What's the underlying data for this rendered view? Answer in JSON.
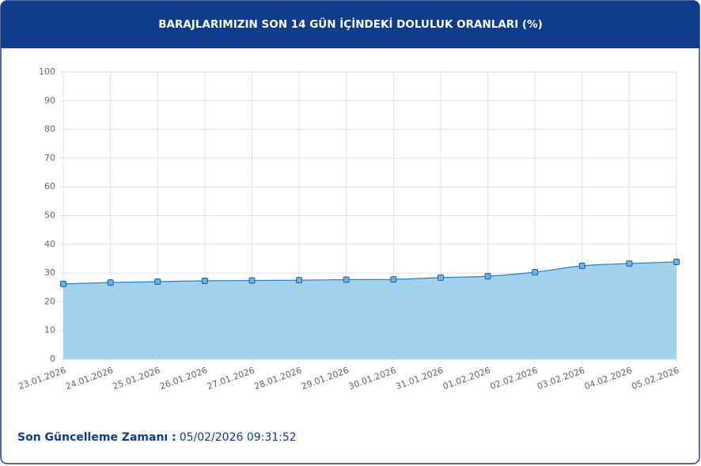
{
  "chart_data": {
    "type": "line",
    "title": "BARAJLARIMIZIN SON 14 GÜN İÇİNDEKİ DOLULUK ORANLARI (%)",
    "categories": [
      "23.01.2026",
      "24.01.2026",
      "25.01.2026",
      "26.01.2026",
      "27.01.2026",
      "28.01.2026",
      "29.01.2026",
      "30.01.2026",
      "31.01.2026",
      "01.02.2026",
      "02.02.2026",
      "03.02.2026",
      "04.02.2026",
      "05.02.2026"
    ],
    "values": [
      26.2,
      26.7,
      27.0,
      27.3,
      27.4,
      27.5,
      27.7,
      27.8,
      28.4,
      28.9,
      30.3,
      32.5,
      33.3,
      33.9
    ],
    "color": "#2b7fc0",
    "area_color": "#9dd0ec",
    "ylim": [
      0,
      100
    ],
    "yticks": [
      0,
      10,
      20,
      30,
      40,
      50,
      60,
      70,
      80,
      90,
      100
    ],
    "grid": true
  },
  "footer": {
    "label": "Son Güncelleme Zamanı :",
    "value": "05/02/2026 09:31:52"
  }
}
